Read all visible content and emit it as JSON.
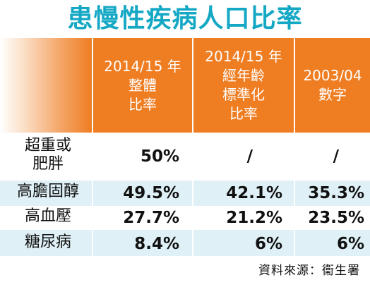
{
  "title": "患慢性疾病人口比率",
  "columns": [
    {
      "lines": [
        "2014/15 年",
        "整體",
        "比率"
      ]
    },
    {
      "lines": [
        "2014/15 年",
        "經年齡",
        "標準化",
        "比率"
      ]
    },
    {
      "lines": [
        "2003/04",
        "數字"
      ]
    }
  ],
  "rows": [
    {
      "label_lines": [
        "超重或",
        "肥胖"
      ],
      "values": [
        "50%",
        "/",
        "/"
      ]
    },
    {
      "label_lines": [
        "高膽固醇"
      ],
      "values": [
        "49.5%",
        "42.1%",
        "35.3%"
      ]
    },
    {
      "label_lines": [
        "高血壓"
      ],
      "values": [
        "27.7%",
        "21.2%",
        "23.5%"
      ]
    },
    {
      "label_lines": [
        "糖尿病"
      ],
      "values": [
        "8.4%",
        "6%",
        "6%"
      ]
    }
  ],
  "source": "資料來源：衞生署",
  "colors": {
    "title": "#14a8c4",
    "header": "#ef7d22",
    "band": "#dff0f6"
  }
}
